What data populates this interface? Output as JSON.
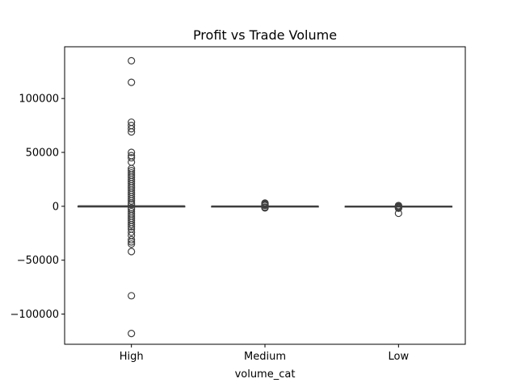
{
  "chart_data": {
    "type": "box",
    "title": "Profit vs Trade Volume",
    "xlabel": "volume_cat",
    "ylabel": "",
    "categories": [
      "High",
      "Medium",
      "Low"
    ],
    "ylim": [
      -128000,
      148000
    ],
    "yticks": [
      -100000,
      -50000,
      0,
      50000,
      100000
    ],
    "ytick_labels": [
      "−100000",
      "−50000",
      "0",
      "50000",
      "100000"
    ],
    "grid": false,
    "boxes": [
      {
        "category": "High",
        "whisker_low": -500,
        "q1": -120,
        "median": 0,
        "q3": 150,
        "whisker_high": 500,
        "outliers": [
          135000,
          115000,
          78000,
          75000,
          72000,
          69000,
          50000,
          47000,
          45000,
          41000,
          35000,
          33000,
          31000,
          29000,
          27000,
          25000,
          23000,
          21000,
          19000,
          17000,
          15000,
          13000,
          11000,
          9000,
          7000,
          5000,
          3000,
          1500,
          -1500,
          -3000,
          -5000,
          -7000,
          -9000,
          -11000,
          -13000,
          -15000,
          -17000,
          -19000,
          -21000,
          -24000,
          -27000,
          -31000,
          -33000,
          -35000,
          -42000,
          -83000,
          -118000
        ]
      },
      {
        "category": "Medium",
        "whisker_low": -300,
        "q1": -60,
        "median": 0,
        "q3": 60,
        "whisker_high": 300,
        "outliers": [
          3000,
          2500,
          2000,
          1500,
          1000,
          700,
          -700,
          -1000,
          -1500
        ]
      },
      {
        "category": "Low",
        "whisker_low": -150,
        "q1": -30,
        "median": 0,
        "q3": 30,
        "whisker_high": 150,
        "outliers": [
          700,
          400,
          -400,
          -700,
          -1200,
          -1800,
          -6500
        ]
      }
    ],
    "colors": {
      "box_fill": "#4c72b0",
      "line": "#3f3f3f",
      "axis": "#000000"
    }
  }
}
